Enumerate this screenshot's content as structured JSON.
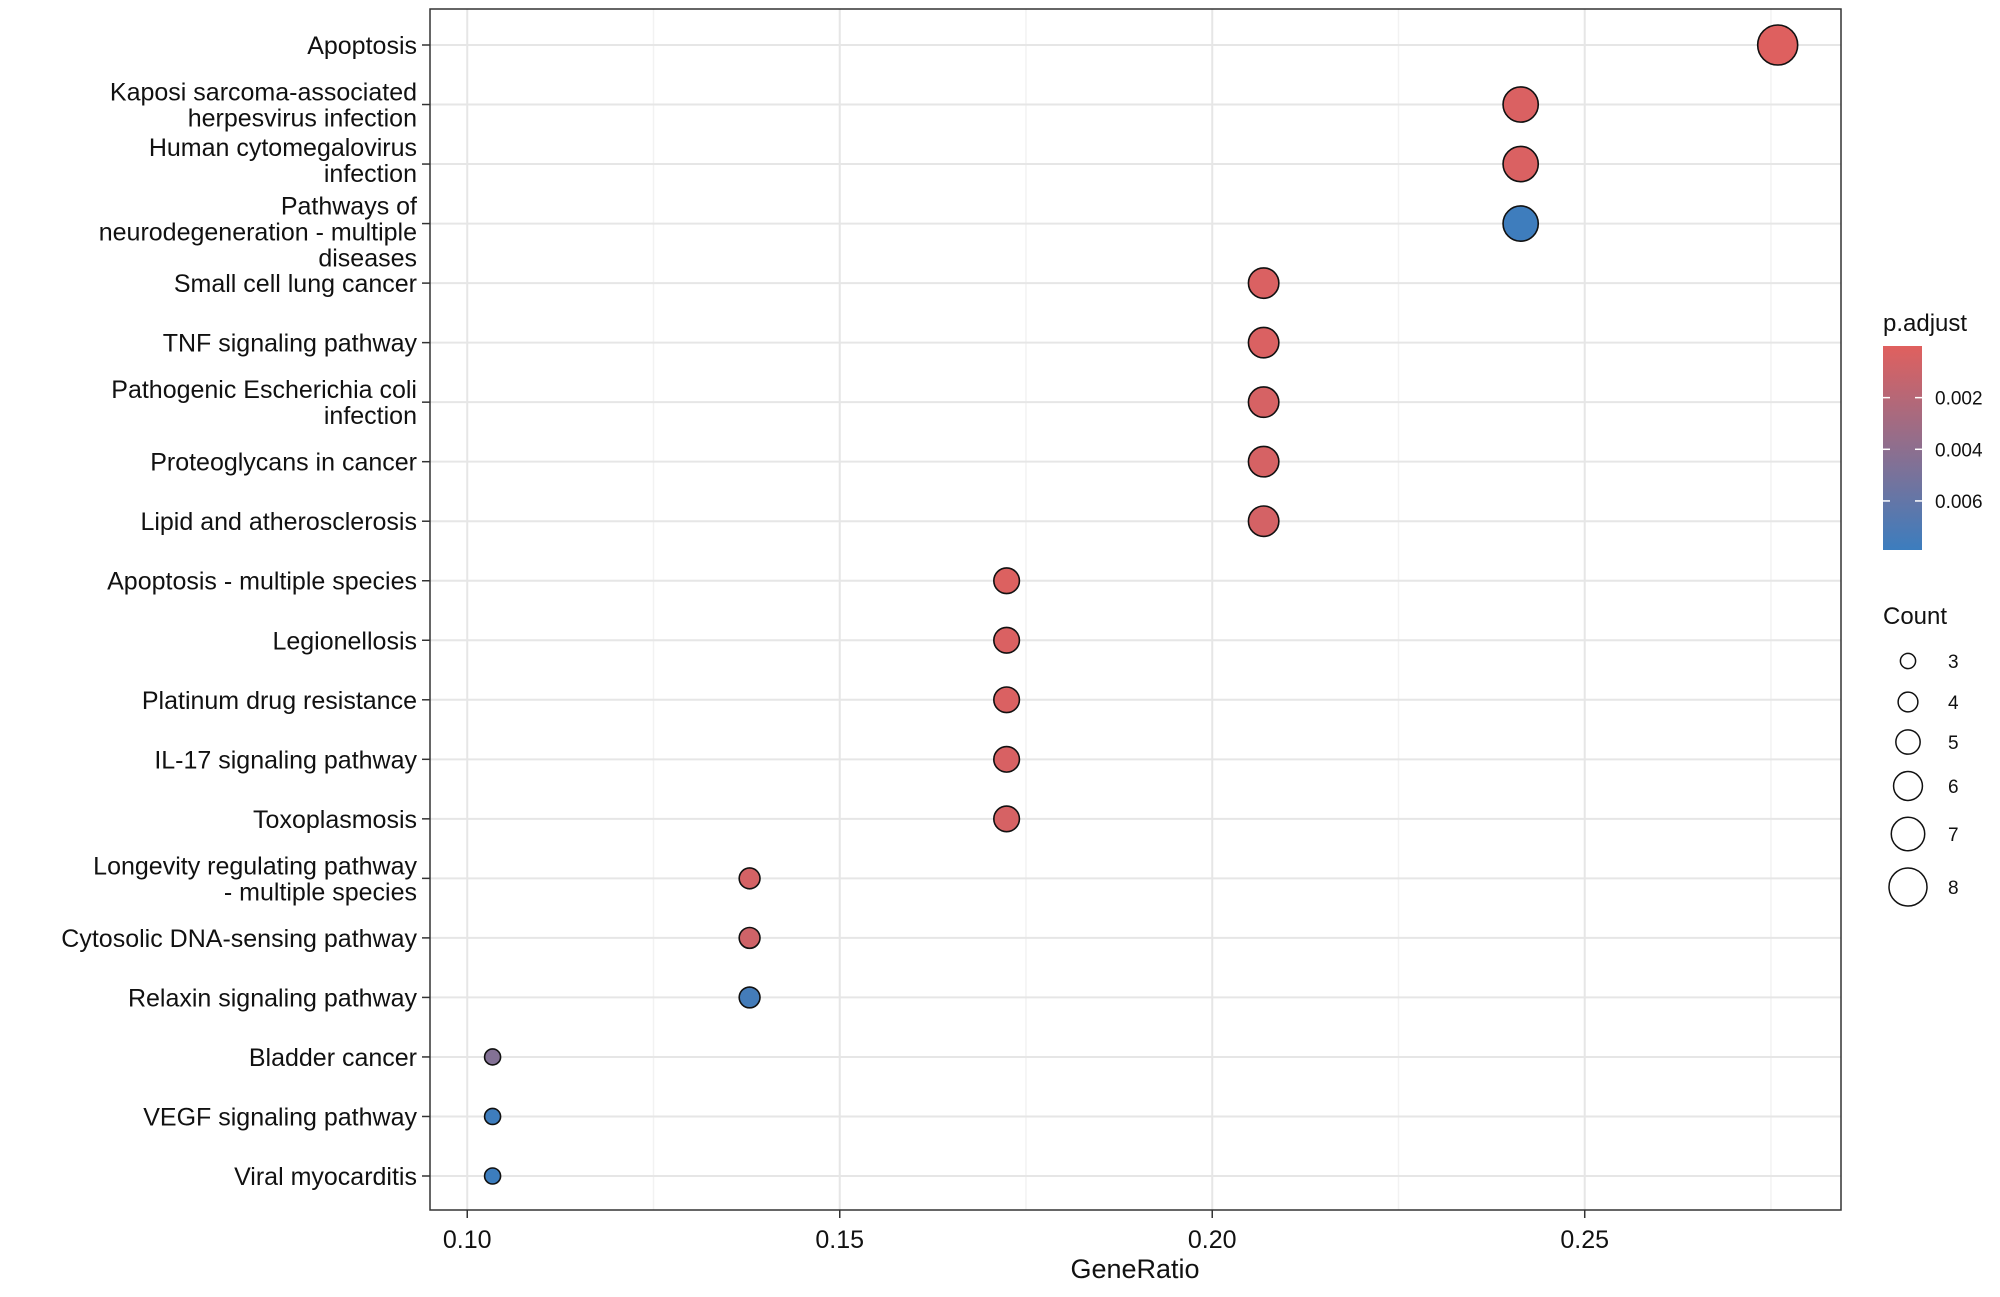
{
  "chart_data": {
    "type": "scatter",
    "subtype": "dot-plot",
    "xlabel": "GeneRatio",
    "ylabel": "",
    "xlim": [
      0.095,
      0.2844
    ],
    "x_ticks": [
      "0.10",
      "0.15",
      "0.20",
      "0.25"
    ],
    "x_tick_values": [
      0.1,
      0.15,
      0.2,
      0.25
    ],
    "grid": true,
    "legend_position": "right",
    "categories": [
      {
        "label": [
          "Apoptosis"
        ],
        "gene_ratio": 0.2759,
        "count": 8,
        "p_adjust": 0.0001
      },
      {
        "label": [
          "Kaposi sarcoma-associated",
          "herpesvirus infection"
        ],
        "gene_ratio": 0.2414,
        "count": 7,
        "p_adjust": 0.0003
      },
      {
        "label": [
          "Human cytomegalovirus",
          "infection"
        ],
        "gene_ratio": 0.2414,
        "count": 7,
        "p_adjust": 0.0003
      },
      {
        "label": [
          "Pathways of",
          "neurodegeneration - multiple",
          "diseases"
        ],
        "gene_ratio": 0.2414,
        "count": 7,
        "p_adjust": 0.0078
      },
      {
        "label": [
          "Small cell lung cancer"
        ],
        "gene_ratio": 0.2069,
        "count": 6,
        "p_adjust": 0.0003
      },
      {
        "label": [
          "TNF signaling pathway"
        ],
        "gene_ratio": 0.2069,
        "count": 6,
        "p_adjust": 0.0003
      },
      {
        "label": [
          "Pathogenic Escherichia coli",
          "infection"
        ],
        "gene_ratio": 0.2069,
        "count": 6,
        "p_adjust": 0.0005
      },
      {
        "label": [
          "Proteoglycans in cancer"
        ],
        "gene_ratio": 0.2069,
        "count": 6,
        "p_adjust": 0.0005
      },
      {
        "label": [
          "Lipid and atherosclerosis"
        ],
        "gene_ratio": 0.2069,
        "count": 6,
        "p_adjust": 0.0006
      },
      {
        "label": [
          "Apoptosis - multiple species"
        ],
        "gene_ratio": 0.1724,
        "count": 5,
        "p_adjust": 0.0002
      },
      {
        "label": [
          "Legionellosis"
        ],
        "gene_ratio": 0.1724,
        "count": 5,
        "p_adjust": 0.0003
      },
      {
        "label": [
          "Platinum drug resistance"
        ],
        "gene_ratio": 0.1724,
        "count": 5,
        "p_adjust": 0.0003
      },
      {
        "label": [
          "IL-17 signaling pathway"
        ],
        "gene_ratio": 0.1724,
        "count": 5,
        "p_adjust": 0.0004
      },
      {
        "label": [
          "Toxoplasmosis"
        ],
        "gene_ratio": 0.1724,
        "count": 5,
        "p_adjust": 0.0005
      },
      {
        "label": [
          "Longevity regulating pathway",
          "- multiple species"
        ],
        "gene_ratio": 0.1379,
        "count": 4,
        "p_adjust": 0.0006
      },
      {
        "label": [
          "Cytosolic DNA-sensing pathway"
        ],
        "gene_ratio": 0.1379,
        "count": 4,
        "p_adjust": 0.0008
      },
      {
        "label": [
          "Relaxin signaling pathway"
        ],
        "gene_ratio": 0.1379,
        "count": 4,
        "p_adjust": 0.0075
      },
      {
        "label": [
          "Bladder cancer"
        ],
        "gene_ratio": 0.1034,
        "count": 3,
        "p_adjust": 0.0045
      },
      {
        "label": [
          "VEGF signaling pathway"
        ],
        "gene_ratio": 0.1034,
        "count": 3,
        "p_adjust": 0.0078
      },
      {
        "label": [
          "Viral myocarditis"
        ],
        "gene_ratio": 0.1034,
        "count": 3,
        "p_adjust": 0.0079
      }
    ],
    "color_legend": {
      "title": "p.adjust",
      "range": [
        0.0,
        0.0079
      ],
      "ticks": [
        "0.002",
        "0.004",
        "0.006"
      ],
      "tick_values": [
        0.002,
        0.004,
        0.006
      ],
      "low_color": "#E0605E",
      "high_color": "#3C7DBE"
    },
    "size_legend": {
      "title": "Count",
      "values": [
        "3",
        "4",
        "5",
        "6",
        "7",
        "8"
      ]
    }
  }
}
